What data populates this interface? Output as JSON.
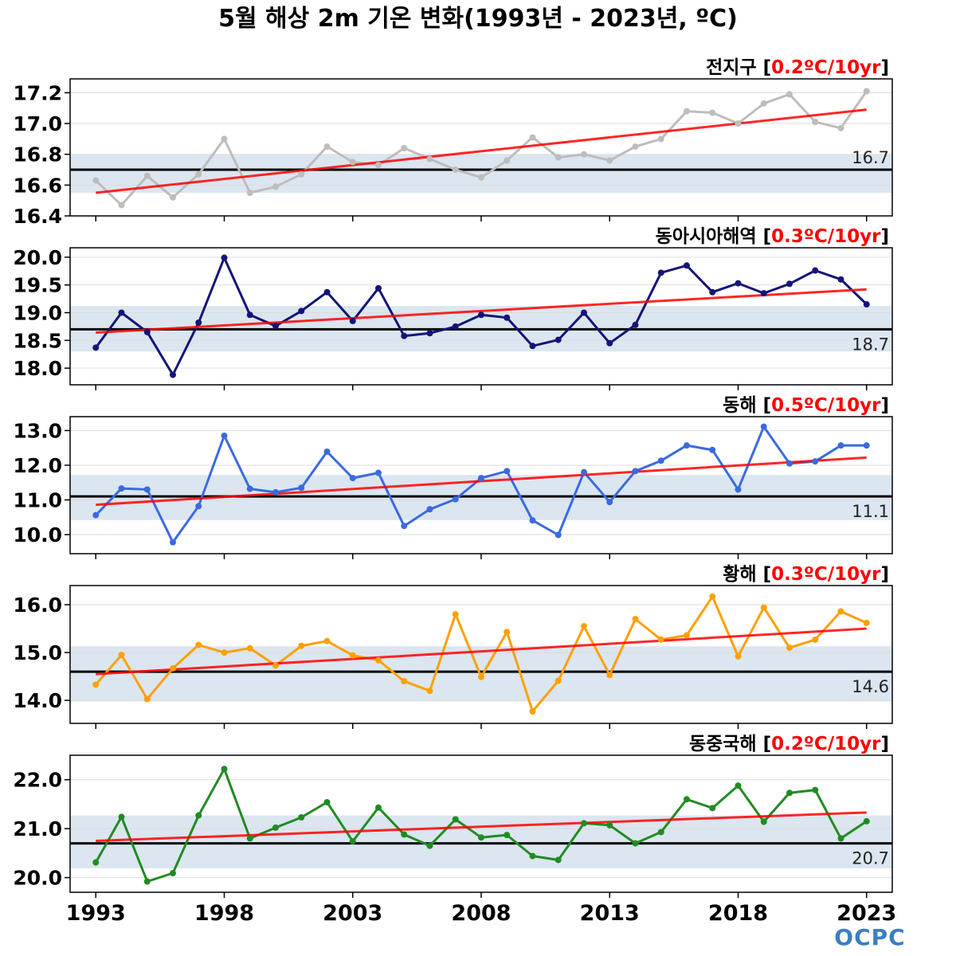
{
  "title": "5월 해상 2m 기온 변화(1993년 - 2023년, ºC)",
  "logo": "OCPC",
  "colors": {
    "trend": "#ff0000",
    "mean_line": "#000000",
    "band": "#dbe6f0",
    "grid": "#dddddd"
  },
  "chart_data": [
    {
      "type": "line",
      "region": "전지구",
      "trend_label": "0.2ºC/10yr",
      "series_color": "#bdbdbd",
      "mean": 16.7,
      "mean_label": "16.7",
      "mean_label_pos": "above",
      "band": [
        16.55,
        16.8
      ],
      "ylim": [
        16.4,
        17.29
      ],
      "yticks": [
        16.4,
        16.6,
        16.8,
        17.0,
        17.2
      ],
      "ytick_labels": [
        "16.4",
        "16.6",
        "16.8",
        "17.0",
        "17.2"
      ],
      "trend_line": [
        16.55,
        17.09
      ],
      "x": [
        1993,
        1994,
        1995,
        1996,
        1997,
        1998,
        1999,
        2000,
        2001,
        2002,
        2003,
        2004,
        2005,
        2006,
        2007,
        2008,
        2009,
        2010,
        2011,
        2012,
        2013,
        2014,
        2015,
        2016,
        2017,
        2018,
        2019,
        2020,
        2021,
        2022,
        2023
      ],
      "values": [
        16.63,
        16.47,
        16.66,
        16.52,
        16.67,
        16.9,
        16.55,
        16.59,
        16.67,
        16.85,
        16.75,
        16.73,
        16.84,
        16.77,
        16.7,
        16.65,
        16.76,
        16.91,
        16.78,
        16.8,
        16.76,
        16.85,
        16.9,
        17.08,
        17.07,
        17.0,
        17.13,
        17.19,
        17.01,
        16.97,
        17.21
      ]
    },
    {
      "type": "line",
      "region": "동아시아해역",
      "trend_label": "0.3ºC/10yr",
      "series_color": "#141478",
      "mean": 18.7,
      "mean_label": "18.7",
      "mean_label_pos": "below",
      "band": [
        18.3,
        19.12
      ],
      "ylim": [
        17.7,
        20.17
      ],
      "yticks": [
        18.0,
        18.5,
        19.0,
        19.5,
        20.0
      ],
      "ytick_labels": [
        "18.0",
        "18.5",
        "19.0",
        "19.5",
        "20.0"
      ],
      "trend_line": [
        18.64,
        19.42
      ],
      "x": [
        1993,
        1994,
        1995,
        1996,
        1997,
        1998,
        1999,
        2000,
        2001,
        2002,
        2003,
        2004,
        2005,
        2006,
        2007,
        2008,
        2009,
        2010,
        2011,
        2012,
        2013,
        2014,
        2015,
        2016,
        2017,
        2018,
        2019,
        2020,
        2021,
        2022,
        2023
      ],
      "values": [
        18.37,
        19.0,
        18.65,
        17.88,
        18.82,
        19.99,
        18.96,
        18.76,
        19.03,
        19.37,
        18.85,
        19.44,
        18.58,
        18.63,
        18.75,
        18.96,
        18.91,
        18.4,
        18.51,
        19.0,
        18.45,
        18.78,
        19.72,
        19.85,
        19.37,
        19.53,
        19.35,
        19.52,
        19.76,
        19.6,
        19.15
      ]
    },
    {
      "type": "line",
      "region": "동해",
      "trend_label": "0.5ºC/10yr",
      "series_color": "#3a6ae0",
      "mean": 11.1,
      "mean_label": "11.1",
      "mean_label_pos": "below",
      "band": [
        10.42,
        11.72
      ],
      "ylim": [
        9.45,
        13.4
      ],
      "yticks": [
        10.0,
        11.0,
        12.0,
        13.0
      ],
      "ytick_labels": [
        "10.0",
        "11.0",
        "12.0",
        "13.0"
      ],
      "trend_line": [
        10.86,
        12.22
      ],
      "x": [
        1993,
        1994,
        1995,
        1996,
        1997,
        1998,
        1999,
        2000,
        2001,
        2002,
        2003,
        2004,
        2005,
        2006,
        2007,
        2008,
        2009,
        2010,
        2011,
        2012,
        2013,
        2014,
        2015,
        2016,
        2017,
        2018,
        2019,
        2020,
        2021,
        2022,
        2023
      ],
      "values": [
        10.56,
        11.33,
        11.3,
        9.78,
        10.82,
        12.85,
        11.32,
        11.22,
        11.35,
        12.39,
        11.63,
        11.78,
        10.25,
        10.73,
        11.02,
        11.63,
        11.83,
        10.41,
        9.99,
        11.8,
        10.94,
        11.83,
        12.13,
        12.57,
        12.44,
        11.3,
        13.11,
        12.05,
        12.11,
        12.57,
        12.57
      ]
    },
    {
      "type": "line",
      "region": "황해",
      "trend_label": "0.3ºC/10yr",
      "series_color": "#ffa000",
      "mean": 14.6,
      "mean_label": "14.6",
      "mean_label_pos": "below",
      "band": [
        13.98,
        15.13
      ],
      "ylim": [
        13.52,
        16.4
      ],
      "yticks": [
        14.0,
        15.0,
        16.0
      ],
      "ytick_labels": [
        "14.0",
        "15.0",
        "16.0"
      ],
      "trend_line": [
        14.55,
        15.5
      ],
      "x": [
        1993,
        1994,
        1995,
        1996,
        1997,
        1998,
        1999,
        2000,
        2001,
        2002,
        2003,
        2004,
        2005,
        2006,
        2007,
        2008,
        2009,
        2010,
        2011,
        2012,
        2013,
        2014,
        2015,
        2016,
        2017,
        2018,
        2019,
        2020,
        2021,
        2022,
        2023
      ],
      "values": [
        14.33,
        14.95,
        14.03,
        14.67,
        15.16,
        15.0,
        15.09,
        14.73,
        15.14,
        15.24,
        14.94,
        14.84,
        14.4,
        14.2,
        15.8,
        14.49,
        15.43,
        13.77,
        14.41,
        15.55,
        14.53,
        15.7,
        15.27,
        15.36,
        16.17,
        14.92,
        15.94,
        15.1,
        15.27,
        15.86,
        15.62
      ]
    },
    {
      "type": "line",
      "region": "동중국해",
      "trend_label": "0.2ºC/10yr",
      "series_color": "#228b22",
      "mean": 20.7,
      "mean_label": "20.7",
      "mean_label_pos": "below",
      "band": [
        20.19,
        21.27
      ],
      "ylim": [
        19.7,
        22.5
      ],
      "yticks": [
        20.0,
        21.0,
        22.0
      ],
      "ytick_labels": [
        "20.0",
        "21.0",
        "22.0"
      ],
      "trend_line": [
        20.75,
        21.33
      ],
      "x": [
        1993,
        1994,
        1995,
        1996,
        1997,
        1998,
        1999,
        2000,
        2001,
        2002,
        2003,
        2004,
        2005,
        2006,
        2007,
        2008,
        2009,
        2010,
        2011,
        2012,
        2013,
        2014,
        2015,
        2016,
        2017,
        2018,
        2019,
        2020,
        2021,
        2022,
        2023
      ],
      "values": [
        20.31,
        21.24,
        19.92,
        20.09,
        21.27,
        22.22,
        20.8,
        21.02,
        21.23,
        21.54,
        20.74,
        21.43,
        20.88,
        20.65,
        21.19,
        20.82,
        20.87,
        20.44,
        20.36,
        21.11,
        21.07,
        20.7,
        20.93,
        21.6,
        21.42,
        21.88,
        21.14,
        21.73,
        21.79,
        20.8,
        21.15
      ]
    }
  ],
  "xaxis": {
    "xlim": [
      1992,
      2024
    ],
    "ticks": [
      1993,
      1998,
      2003,
      2008,
      2013,
      2018,
      2023
    ],
    "tick_labels": [
      "1993",
      "1998",
      "2003",
      "2008",
      "2013",
      "2018",
      "2023"
    ]
  }
}
